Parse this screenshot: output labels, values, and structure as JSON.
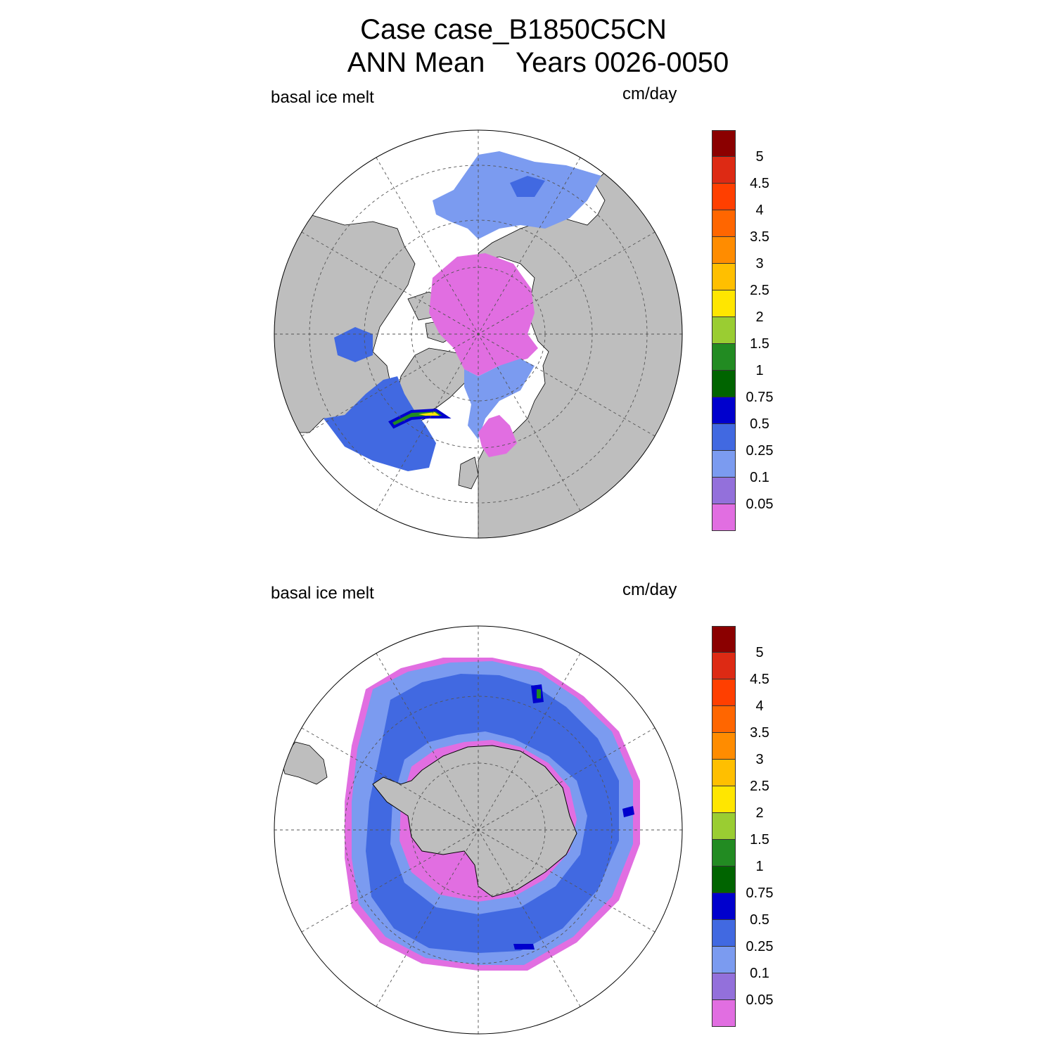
{
  "title": {
    "line1": "Case case_B1850C5CN",
    "line2": "ANN Mean    Years 0026-0050"
  },
  "panels": [
    {
      "id": "north",
      "variable": "basal ice melt",
      "units": "cm/day"
    },
    {
      "id": "south",
      "variable": "basal ice melt",
      "units": "cm/day"
    }
  ],
  "colorbar": {
    "colors": [
      "#8b0000",
      "#dd2a14",
      "#ff3f00",
      "#ff6600",
      "#ff8c00",
      "#ffbf00",
      "#ffe600",
      "#9acd32",
      "#228b22",
      "#006400",
      "#0000cd",
      "#4169e1",
      "#7b9bf0",
      "#9370db",
      "#e16ee1"
    ],
    "labels": [
      "5",
      "4.5",
      "4",
      "3.5",
      "3",
      "2.5",
      "2",
      "1.5",
      "1",
      "0.75",
      "0.5",
      "0.25",
      "0.1",
      "0.05"
    ]
  },
  "styles": {
    "land": "#bebebe",
    "ocean_no_ice": "#ffffff",
    "grid": "#555555"
  }
}
